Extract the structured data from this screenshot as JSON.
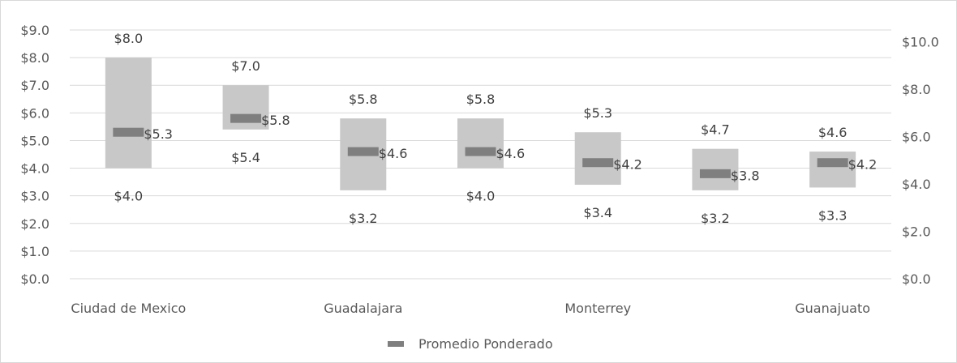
{
  "chart_data": {
    "type": "bar",
    "subtype": "floating-range-with-marker",
    "categories": [
      "Ciudad de Mexico",
      "",
      "Guadalajara",
      "",
      "Monterrey",
      "",
      "Guanajuato"
    ],
    "series": [
      {
        "name": "",
        "role": "range",
        "low": [
          4.0,
          5.4,
          3.2,
          4.0,
          3.4,
          3.2,
          3.3
        ],
        "high": [
          8.0,
          7.0,
          5.8,
          5.8,
          5.3,
          4.7,
          4.6
        ],
        "low_labels": [
          "$4.0",
          "$5.4",
          "$3.2",
          "$4.0",
          "$3.4",
          "$3.2",
          "$3.3"
        ],
        "high_labels": [
          "$8.0",
          "$7.0",
          "$5.8",
          "$5.8",
          "$5.3",
          "$4.7",
          "$4.6"
        ],
        "color": "#c8c8c8"
      },
      {
        "name": "Promedio Ponderado",
        "role": "marker",
        "values": [
          5.3,
          5.8,
          4.6,
          4.6,
          4.2,
          3.8,
          4.2
        ],
        "labels": [
          "$5.3",
          "$5.8",
          "$4.6",
          "$4.6",
          "$4.2",
          "$3.8",
          "$4.2"
        ],
        "color": "#7f7f7f"
      }
    ],
    "y_left": {
      "ylim": [
        0,
        9
      ],
      "ticks": [
        0,
        1,
        2,
        3,
        4,
        5,
        6,
        7,
        8,
        9
      ],
      "tick_labels": [
        "$0.0",
        "$1.0",
        "$2.0",
        "$3.0",
        "$4.0",
        "$5.0",
        "$6.0",
        "$7.0",
        "$8.0",
        "$9.0"
      ]
    },
    "y_right": {
      "ylim": [
        0,
        10.5
      ],
      "ticks": [
        0,
        2,
        4,
        6,
        8,
        10
      ],
      "tick_labels": [
        "$0.0",
        "$2.0",
        "$4.0",
        "$6.0",
        "$8.0",
        "$10.0"
      ]
    },
    "grid": true,
    "legend": {
      "position": "bottom",
      "entries": [
        "Promedio Ponderado"
      ]
    },
    "colors": {
      "gridline": "#d9d9d9",
      "text": "#595959",
      "label": "#404040"
    }
  }
}
